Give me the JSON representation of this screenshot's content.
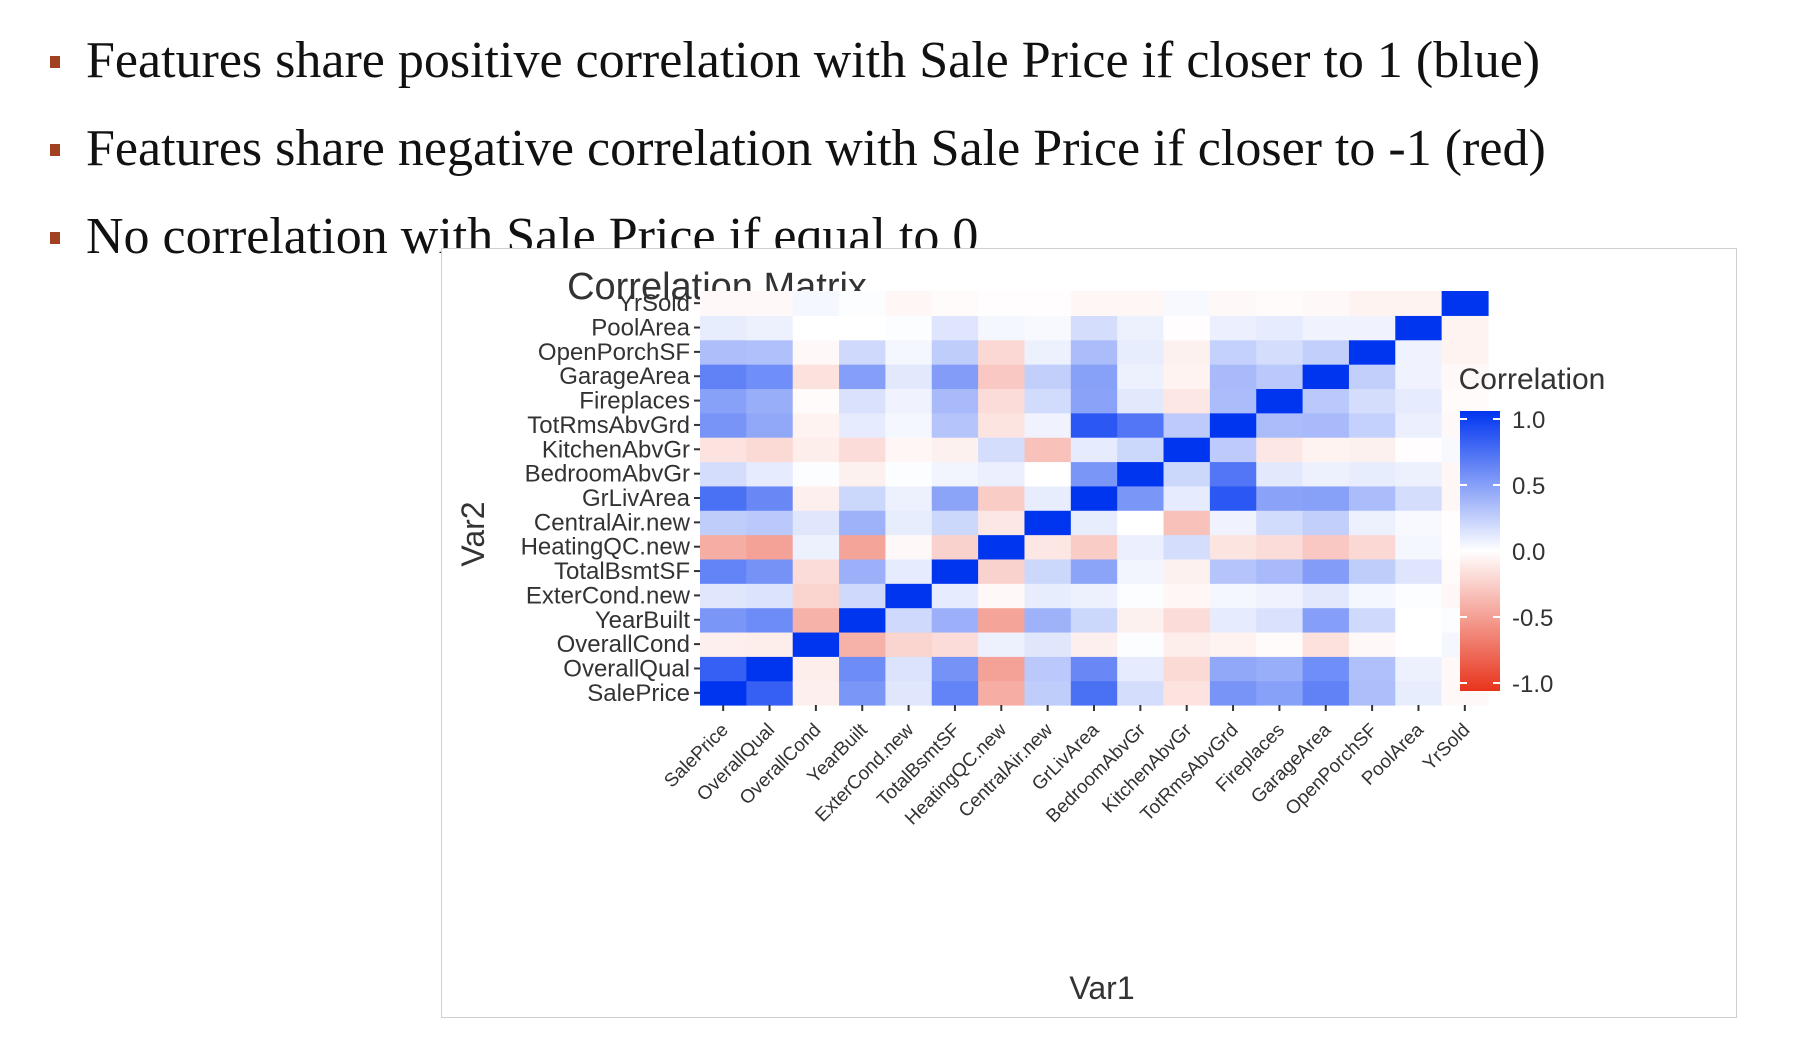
{
  "bullets": [
    {
      "text": "Features share positive correlation with Sale Price if closer to 1 (blue)"
    },
    {
      "text": "Features share negative correlation with Sale Price if closer to -1 (red)"
    },
    {
      "text": "No correlation with Sale Price if equal to 0"
    }
  ],
  "colors": {
    "bullet_mark": "#a0411f",
    "high": "#0035f0",
    "mid": "#ffffff",
    "low": "#e8341c"
  },
  "chart_data": {
    "type": "heatmap",
    "title": "Correlation Matrix",
    "xlabel": "Var1",
    "ylabel": "Var2",
    "legend_title": "Correlation",
    "legend_ticks": [
      "1.0",
      "0.5",
      "0.0",
      "-0.5",
      "-1.0"
    ],
    "legend_position": "right",
    "value_range": [
      -1,
      1
    ],
    "variables": [
      "SalePrice",
      "OverallQual",
      "OverallCond",
      "YearBuilt",
      "ExterCond.new",
      "TotalBsmtSF",
      "HeatingQC.new",
      "CentralAir.new",
      "GrLivArea",
      "BedroomAbvGr",
      "KitchenAbvGr",
      "TotRmsAbvGrd",
      "Fireplaces",
      "GarageArea",
      "OpenPorchSF",
      "PoolArea",
      "YrSold"
    ],
    "matrix": [
      [
        1.0,
        0.79,
        -0.08,
        0.52,
        0.12,
        0.61,
        -0.4,
        0.25,
        0.71,
        0.17,
        -0.14,
        0.53,
        0.47,
        0.62,
        0.32,
        0.09,
        -0.03
      ],
      [
        0.79,
        1.0,
        -0.09,
        0.57,
        0.14,
        0.54,
        -0.46,
        0.27,
        0.59,
        0.1,
        -0.18,
        0.43,
        0.4,
        0.56,
        0.31,
        0.07,
        -0.03
      ],
      [
        -0.08,
        -0.09,
        1.0,
        -0.38,
        -0.21,
        -0.17,
        0.07,
        0.12,
        -0.08,
        0.01,
        -0.09,
        -0.06,
        -0.02,
        -0.15,
        -0.03,
        0.0,
        0.04
      ],
      [
        0.52,
        0.57,
        -0.38,
        1.0,
        0.19,
        0.39,
        -0.45,
        0.38,
        0.2,
        -0.07,
        -0.17,
        0.1,
        0.15,
        0.48,
        0.19,
        0.0,
        0.01
      ],
      [
        0.12,
        0.14,
        -0.21,
        0.19,
        1.0,
        0.1,
        -0.03,
        0.09,
        0.07,
        0.01,
        -0.04,
        0.04,
        0.06,
        0.11,
        0.04,
        0.01,
        -0.04
      ],
      [
        0.61,
        0.54,
        -0.17,
        0.39,
        0.1,
        1.0,
        -0.22,
        0.2,
        0.45,
        0.05,
        -0.07,
        0.29,
        0.34,
        0.49,
        0.25,
        0.13,
        -0.02
      ],
      [
        -0.4,
        -0.46,
        0.07,
        -0.45,
        -0.03,
        -0.22,
        1.0,
        -0.12,
        -0.25,
        0.08,
        0.17,
        -0.13,
        -0.17,
        -0.27,
        -0.19,
        0.04,
        -0.01
      ],
      [
        0.25,
        0.27,
        0.12,
        0.38,
        0.09,
        0.2,
        -0.12,
        1.0,
        0.09,
        0.0,
        -0.3,
        0.06,
        0.18,
        0.24,
        0.07,
        0.03,
        -0.01
      ],
      [
        0.71,
        0.59,
        -0.08,
        0.2,
        0.07,
        0.45,
        -0.25,
        0.09,
        1.0,
        0.52,
        0.1,
        0.83,
        0.46,
        0.47,
        0.33,
        0.17,
        -0.04
      ],
      [
        0.17,
        0.1,
        0.01,
        -0.07,
        0.01,
        0.05,
        0.08,
        0.0,
        0.52,
        1.0,
        0.2,
        0.68,
        0.11,
        0.07,
        0.09,
        0.07,
        -0.04
      ],
      [
        -0.14,
        -0.18,
        -0.09,
        -0.17,
        -0.04,
        -0.07,
        0.17,
        -0.3,
        0.1,
        0.2,
        1.0,
        0.26,
        -0.12,
        -0.06,
        -0.07,
        -0.01,
        0.03
      ],
      [
        0.53,
        0.43,
        -0.06,
        0.1,
        0.04,
        0.29,
        -0.13,
        0.06,
        0.83,
        0.68,
        0.26,
        1.0,
        0.33,
        0.34,
        0.23,
        0.08,
        -0.03
      ],
      [
        0.47,
        0.4,
        -0.02,
        0.15,
        0.06,
        0.34,
        -0.17,
        0.18,
        0.46,
        0.11,
        -0.12,
        0.33,
        1.0,
        0.27,
        0.17,
        0.1,
        -0.02
      ],
      [
        0.62,
        0.56,
        -0.15,
        0.48,
        0.11,
        0.49,
        -0.27,
        0.24,
        0.47,
        0.07,
        -0.06,
        0.34,
        0.27,
        1.0,
        0.24,
        0.06,
        -0.03
      ],
      [
        0.32,
        0.31,
        -0.03,
        0.19,
        0.04,
        0.25,
        -0.19,
        0.07,
        0.33,
        0.09,
        -0.07,
        0.23,
        0.17,
        0.24,
        1.0,
        0.06,
        -0.06
      ],
      [
        0.09,
        0.07,
        0.0,
        0.0,
        0.01,
        0.13,
        0.04,
        0.03,
        0.17,
        0.07,
        -0.01,
        0.08,
        0.1,
        0.06,
        0.06,
        1.0,
        -0.06
      ],
      [
        -0.03,
        -0.03,
        0.04,
        0.01,
        -0.04,
        -0.02,
        -0.01,
        -0.01,
        -0.04,
        -0.04,
        0.03,
        -0.03,
        -0.02,
        -0.03,
        -0.06,
        -0.06,
        1.0
      ]
    ]
  }
}
